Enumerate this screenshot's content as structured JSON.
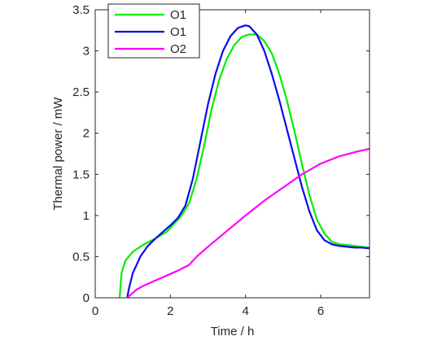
{
  "chart_data": {
    "type": "line",
    "xlabel": "Time / h",
    "ylabel": "Thermal power / mW",
    "xlim": [
      0,
      7.3
    ],
    "ylim": [
      0,
      3.5
    ],
    "xticks": [
      "0",
      "2",
      "4",
      "6"
    ],
    "yticks": [
      "0",
      "0.5",
      "1",
      "1.5",
      "2",
      "2.5",
      "3",
      "3.5"
    ],
    "grid": false,
    "legend_position": "top-left",
    "series": [
      {
        "name": "O1",
        "color": "#00ee00",
        "points": [
          [
            0.65,
            0
          ],
          [
            0.7,
            0.3
          ],
          [
            0.8,
            0.45
          ],
          [
            1.0,
            0.56
          ],
          [
            1.3,
            0.65
          ],
          [
            1.6,
            0.72
          ],
          [
            1.9,
            0.8
          ],
          [
            2.1,
            0.9
          ],
          [
            2.3,
            1.0
          ],
          [
            2.5,
            1.15
          ],
          [
            2.7,
            1.45
          ],
          [
            2.9,
            1.85
          ],
          [
            3.1,
            2.3
          ],
          [
            3.3,
            2.65
          ],
          [
            3.5,
            2.9
          ],
          [
            3.7,
            3.07
          ],
          [
            3.9,
            3.17
          ],
          [
            4.1,
            3.2
          ],
          [
            4.3,
            3.2
          ],
          [
            4.5,
            3.12
          ],
          [
            4.7,
            2.97
          ],
          [
            4.9,
            2.72
          ],
          [
            5.1,
            2.4
          ],
          [
            5.3,
            2.03
          ],
          [
            5.5,
            1.63
          ],
          [
            5.7,
            1.25
          ],
          [
            5.9,
            0.95
          ],
          [
            6.1,
            0.78
          ],
          [
            6.3,
            0.68
          ],
          [
            6.5,
            0.65
          ],
          [
            6.7,
            0.64
          ],
          [
            6.9,
            0.63
          ],
          [
            7.1,
            0.62
          ],
          [
            7.3,
            0.61
          ]
        ]
      },
      {
        "name": "O1",
        "color": "#0a0af0",
        "points": [
          [
            0.85,
            0
          ],
          [
            0.9,
            0.12
          ],
          [
            1.0,
            0.3
          ],
          [
            1.2,
            0.5
          ],
          [
            1.4,
            0.63
          ],
          [
            1.6,
            0.72
          ],
          [
            1.8,
            0.8
          ],
          [
            2.0,
            0.88
          ],
          [
            2.2,
            0.97
          ],
          [
            2.4,
            1.12
          ],
          [
            2.6,
            1.45
          ],
          [
            2.8,
            1.9
          ],
          [
            3.0,
            2.35
          ],
          [
            3.2,
            2.72
          ],
          [
            3.4,
            3.0
          ],
          [
            3.6,
            3.18
          ],
          [
            3.8,
            3.28
          ],
          [
            4.0,
            3.31
          ],
          [
            4.1,
            3.3
          ],
          [
            4.3,
            3.2
          ],
          [
            4.5,
            3.0
          ],
          [
            4.7,
            2.72
          ],
          [
            4.9,
            2.4
          ],
          [
            5.1,
            2.05
          ],
          [
            5.3,
            1.7
          ],
          [
            5.5,
            1.35
          ],
          [
            5.7,
            1.05
          ],
          [
            5.9,
            0.82
          ],
          [
            6.1,
            0.7
          ],
          [
            6.3,
            0.65
          ],
          [
            6.5,
            0.63
          ],
          [
            6.7,
            0.62
          ],
          [
            6.9,
            0.61
          ],
          [
            7.1,
            0.61
          ],
          [
            7.3,
            0.6
          ]
        ]
      },
      {
        "name": "O2",
        "color": "#ff00ff",
        "points": [
          [
            0.85,
            0
          ],
          [
            0.95,
            0.04
          ],
          [
            1.1,
            0.1
          ],
          [
            1.3,
            0.15
          ],
          [
            1.6,
            0.21
          ],
          [
            1.9,
            0.27
          ],
          [
            2.2,
            0.33
          ],
          [
            2.5,
            0.4
          ],
          [
            2.7,
            0.5
          ],
          [
            3.0,
            0.62
          ],
          [
            3.5,
            0.81
          ],
          [
            4.0,
            1.0
          ],
          [
            4.5,
            1.18
          ],
          [
            5.0,
            1.34
          ],
          [
            5.5,
            1.5
          ],
          [
            6.0,
            1.63
          ],
          [
            6.5,
            1.72
          ],
          [
            7.0,
            1.78
          ],
          [
            7.3,
            1.81
          ]
        ]
      }
    ]
  }
}
